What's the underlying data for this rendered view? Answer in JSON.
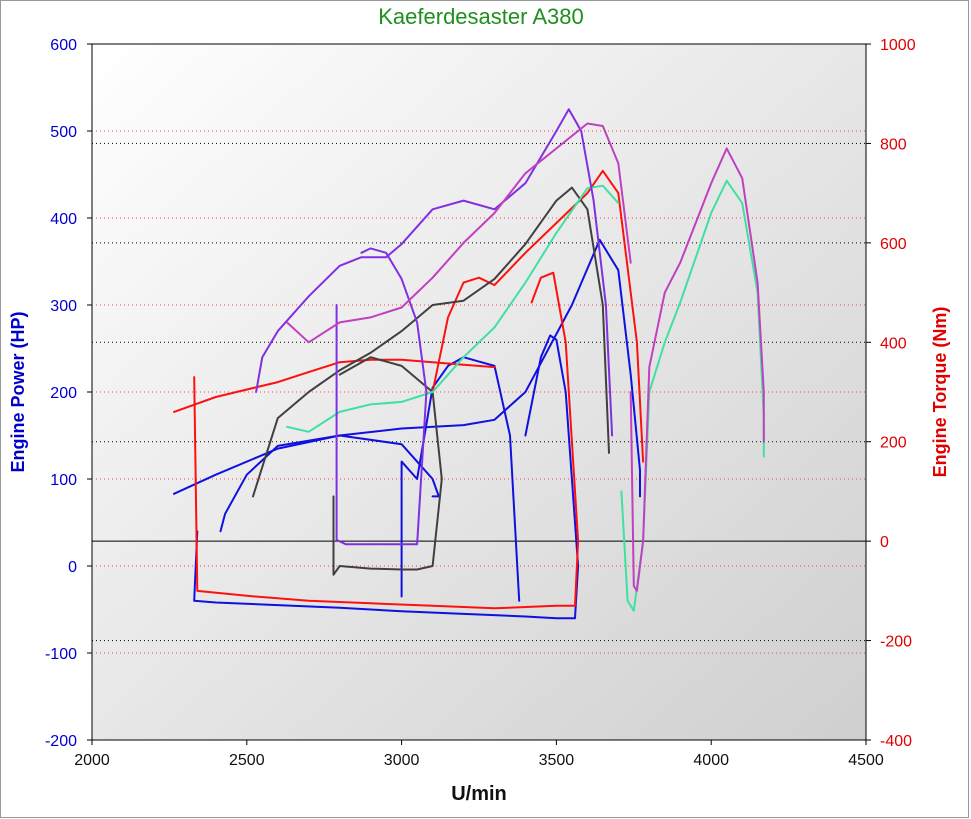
{
  "chart_data": {
    "type": "line",
    "title": "Kaeferdesaster A380",
    "xlabel": "U/min",
    "ylabel_left": "Engine Power (HP)",
    "ylabel_right": "Engine Torque (Nm)",
    "xlim": [
      2000,
      4500
    ],
    "ylim_left": [
      -200,
      600
    ],
    "ylim_right": [
      -400,
      1000
    ],
    "x_ticks": [
      2000,
      2500,
      3000,
      3500,
      4000,
      4500
    ],
    "y_left_ticks": [
      -200,
      -100,
      0,
      100,
      200,
      300,
      400,
      500,
      600
    ],
    "y_right_ticks": [
      -400,
      -200,
      0,
      200,
      400,
      600,
      800,
      1000
    ],
    "grid": true,
    "legend": "none",
    "colors": {
      "power": "#1010e0",
      "torque": "#ff1010",
      "power_b": "#404040",
      "torque_b": "#40e0a0",
      "power_c": "#8030e0",
      "torque_c": "#c040c0",
      "title": "#1f8f1f"
    },
    "series": [
      {
        "axis": "left",
        "color": "#1010e0",
        "x": [
          2265,
          2400,
          2600,
          2800,
          3000,
          3200,
          3300,
          3400,
          3550,
          3640,
          3700,
          3740,
          3770,
          3770
        ],
        "y": [
          83,
          105,
          135,
          150,
          158,
          162,
          168,
          200,
          300,
          375,
          340,
          220,
          110,
          80
        ]
      },
      {
        "axis": "left",
        "color": "#1010e0",
        "x": [
          2415,
          2430,
          2500,
          2600,
          2800,
          3000,
          3050,
          3100,
          3120,
          3100
        ],
        "y": [
          40,
          60,
          105,
          138,
          150,
          140,
          120,
          100,
          80,
          80
        ]
      },
      {
        "axis": "left",
        "color": "#1010e0",
        "x": [
          2340,
          2330,
          2400,
          2600,
          2800,
          3000,
          3200,
          3400,
          3500,
          3560,
          3570,
          3530,
          3500,
          3480,
          3450,
          3400
        ],
        "y": [
          40,
          -40,
          -42,
          -45,
          -48,
          -52,
          -55,
          -58,
          -60,
          -60,
          0,
          200,
          260,
          265,
          240,
          150
        ]
      },
      {
        "axis": "left",
        "color": "#1010e0",
        "x": [
          3000,
          3000,
          3050,
          3100,
          3150,
          3200,
          3250,
          3300,
          3350,
          3380
        ],
        "y": [
          -35,
          120,
          100,
          205,
          230,
          240,
          235,
          230,
          150,
          -40
        ]
      },
      {
        "axis": "right",
        "color": "#ff1010",
        "x": [
          2265,
          2400,
          2600,
          2700,
          2800,
          2900,
          3000,
          3100,
          3200,
          3300
        ],
        "y": [
          260,
          290,
          320,
          340,
          360,
          365,
          365,
          360,
          355,
          350
        ]
      },
      {
        "axis": "right",
        "color": "#ff1010",
        "x": [
          2330,
          2340,
          2500,
          2700,
          2900,
          3100,
          3300,
          3500,
          3560,
          3570,
          3530,
          3490,
          3450,
          3420
        ],
        "y": [
          330,
          -100,
          -110,
          -120,
          -125,
          -130,
          -135,
          -130,
          -130,
          0,
          400,
          540,
          530,
          480
        ]
      },
      {
        "axis": "right",
        "color": "#ff1010",
        "x": [
          3100,
          3150,
          3200,
          3250,
          3300,
          3400,
          3500,
          3600,
          3650,
          3700,
          3760,
          3780
        ],
        "y": [
          300,
          450,
          520,
          530,
          515,
          580,
          640,
          700,
          745,
          700,
          400,
          160
        ]
      },
      {
        "axis": "left",
        "color": "#404040",
        "x": [
          2520,
          2600,
          2700,
          2800,
          2900,
          3000,
          3100,
          3200,
          3300,
          3400,
          3500,
          3550,
          3600,
          3650,
          3670
        ],
        "y": [
          80,
          170,
          200,
          225,
          245,
          270,
          300,
          305,
          330,
          370,
          420,
          435,
          410,
          300,
          130
        ]
      },
      {
        "axis": "left",
        "color": "#404040",
        "x": [
          2780,
          2780,
          2800,
          2900,
          3000,
          3050,
          3100,
          3130,
          3100,
          3000,
          2900,
          2800
        ],
        "y": [
          80,
          -10,
          0,
          -3,
          -4,
          -4,
          0,
          100,
          200,
          230,
          240,
          220
        ]
      },
      {
        "axis": "right",
        "color": "#40e0a0",
        "x": [
          2630,
          2700,
          2800,
          2900,
          3000,
          3100,
          3200,
          3300,
          3400,
          3500,
          3600,
          3650,
          3700
        ],
        "y": [
          230,
          220,
          260,
          275,
          280,
          300,
          370,
          430,
          520,
          620,
          710,
          715,
          680
        ]
      },
      {
        "axis": "right",
        "color": "#40e0a0",
        "x": [
          3710,
          3730,
          3750,
          3780,
          3800,
          3850,
          3900,
          4000,
          4050,
          4100,
          4150,
          4170,
          4170
        ],
        "y": [
          100,
          -120,
          -140,
          0,
          300,
          400,
          480,
          660,
          725,
          680,
          500,
          250,
          170
        ]
      },
      {
        "axis": "left",
        "color": "#8030e0",
        "x": [
          2530,
          2550,
          2600,
          2700,
          2800,
          2870,
          2950,
          3000,
          3100,
          3200,
          3300,
          3400,
          3500,
          3540,
          3580,
          3620,
          3660,
          3680
        ],
        "y": [
          200,
          240,
          270,
          310,
          345,
          355,
          355,
          370,
          410,
          420,
          410,
          440,
          500,
          525,
          500,
          420,
          300,
          150
        ]
      },
      {
        "axis": "left",
        "color": "#8030e0",
        "x": [
          2790,
          2790,
          2820,
          2900,
          3000,
          3050,
          3080,
          3050,
          3000,
          2950,
          2900,
          2870
        ],
        "y": [
          300,
          30,
          25,
          25,
          25,
          25,
          200,
          280,
          330,
          360,
          365,
          360
        ]
      },
      {
        "axis": "right",
        "color": "#c040c0",
        "x": [
          2630,
          2700,
          2800,
          2900,
          3000,
          3100,
          3200,
          3300,
          3400,
          3500,
          3600,
          3650,
          3700,
          3740
        ],
        "y": [
          440,
          400,
          440,
          450,
          470,
          530,
          600,
          660,
          740,
          790,
          840,
          835,
          760,
          560
        ]
      },
      {
        "axis": "right",
        "color": "#c040c0",
        "x": [
          3740,
          3750,
          3760,
          3780,
          3800,
          3850,
          3900,
          4000,
          4050,
          4100,
          4150,
          4170,
          4170
        ],
        "y": [
          300,
          -90,
          -100,
          0,
          350,
          500,
          560,
          720,
          790,
          730,
          520,
          300,
          200
        ]
      }
    ]
  }
}
